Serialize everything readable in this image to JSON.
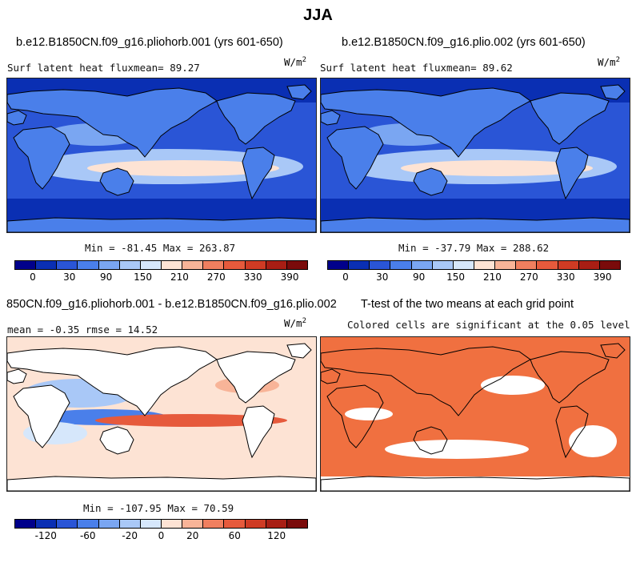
{
  "figure": {
    "season": "JJA"
  },
  "panels": [
    {
      "title": "b.e12.B1850CN.f09_g16.pliohorb.001 (yrs 601-650)",
      "left_label": "Surf latent heat fluxmean=  89.27",
      "units": "W/m",
      "units_exp": "2",
      "minmax": "Min = -81.45 Max = 263.87",
      "colorbar": {
        "colors": [
          "#00008b",
          "#0a2fb3",
          "#2a55d6",
          "#4a7fea",
          "#7aa6f2",
          "#a9c8f7",
          "#d6e7fb",
          "#fde3d4",
          "#f8b498",
          "#f07f5f",
          "#e65a3c",
          "#cf3b24",
          "#a81e14",
          "#7a0b0b"
        ],
        "ticks": [
          "0",
          "30",
          "90",
          "150",
          "210",
          "270",
          "330",
          "390"
        ]
      },
      "field": {
        "min": -81.45,
        "max": 263.87,
        "mean": 89.27
      }
    },
    {
      "title": "b.e12.B1850CN.f09_g16.plio.002 (yrs 601-650)",
      "left_label": "Surf latent heat fluxmean=  89.62",
      "units": "W/m",
      "units_exp": "2",
      "minmax": "Min = -37.79 Max = 288.62",
      "colorbar": {
        "colors": [
          "#00008b",
          "#0a2fb3",
          "#2a55d6",
          "#4a7fea",
          "#7aa6f2",
          "#a9c8f7",
          "#d6e7fb",
          "#fde3d4",
          "#f8b498",
          "#f07f5f",
          "#e65a3c",
          "#cf3b24",
          "#a81e14",
          "#7a0b0b"
        ],
        "ticks": [
          "0",
          "30",
          "90",
          "150",
          "210",
          "270",
          "330",
          "390"
        ]
      },
      "field": {
        "min": -37.79,
        "max": 288.62,
        "mean": 89.62
      }
    },
    {
      "title": "850CN.f09_g16.pliohorb.001 - b.e12.B1850CN.f09_g16.plio.002",
      "left_label": "mean =  -0.35     rmse =  14.52",
      "units": "W/m",
      "units_exp": "2",
      "minmax": "Min = -107.95 Max =  70.59",
      "colorbar": {
        "colors": [
          "#00008b",
          "#0a2fb3",
          "#2a55d6",
          "#4a7fea",
          "#7aa6f2",
          "#a9c8f7",
          "#d6e7fb",
          "#fde3d4",
          "#f8b498",
          "#f07f5f",
          "#e65a3c",
          "#cf3b24",
          "#a81e14",
          "#7a0b0b"
        ],
        "ticks": [
          "-120",
          "-60",
          "-20",
          "0",
          "20",
          "60",
          "120"
        ]
      },
      "field": {
        "min": -107.95,
        "max": 70.59,
        "mean": -0.35,
        "rmse": 14.52
      }
    },
    {
      "title": "T-test of the two means at each grid point",
      "subtitle": "Colored cells are significant at the 0.05 level",
      "fill_color": "#f07040"
    }
  ]
}
